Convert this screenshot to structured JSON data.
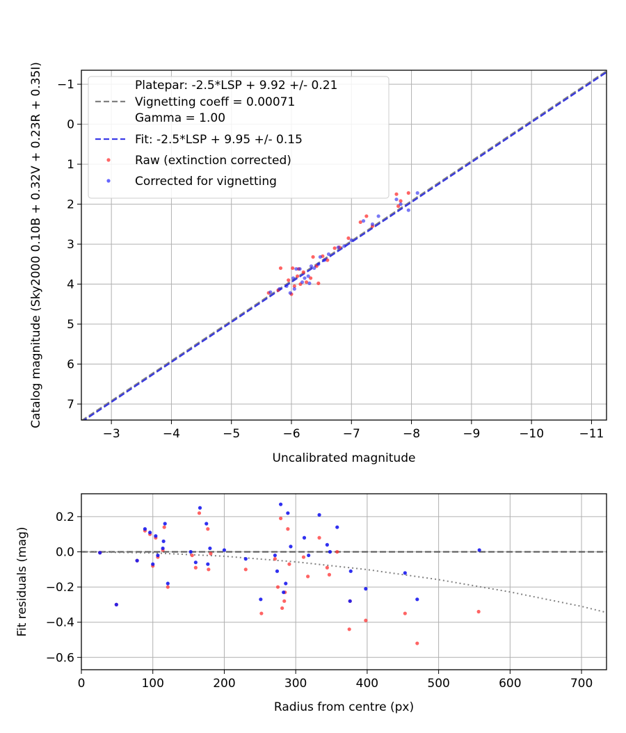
{
  "chart_data": [
    {
      "type": "scatter",
      "title": "",
      "xlabel": "Uncalibrated magnitude",
      "ylabel": "Catalog magnitude (Sky2000 0.10B + 0.32V + 0.23R + 0.35I)",
      "xlim": [
        -2.5,
        -11.25
      ],
      "ylim": [
        7.4,
        -1.35
      ],
      "x_inverted": true,
      "y_inverted": true,
      "grid": true,
      "xticks": [
        -3,
        -4,
        -5,
        -6,
        -7,
        -8,
        -9,
        -10,
        -11
      ],
      "xtick_labels": [
        "−3",
        "−4",
        "−5",
        "−6",
        "−7",
        "−8",
        "−9",
        "−10",
        "−11"
      ],
      "yticks": [
        -1,
        0,
        1,
        2,
        3,
        4,
        5,
        6,
        7
      ],
      "ytick_labels": [
        "−1",
        "0",
        "1",
        "2",
        "3",
        "4",
        "5",
        "6",
        "7"
      ],
      "legend_placement": "top-left",
      "legend": [
        {
          "kind": "line",
          "color": "#808080",
          "dash": "dashed",
          "label": "Platepar: -2.5*LSP + 9.92 +/- 0.21"
        },
        {
          "kind": "line",
          "color": "#808080",
          "dash": "dashed",
          "label": "Vignetting coeff = 0.00071"
        },
        {
          "kind": "line",
          "color": "#808080",
          "dash": "dashed",
          "label": "Gamma = 1.00"
        },
        {
          "kind": "line",
          "color": "#3a3ae8",
          "dash": "dashed",
          "label": "Fit: -2.5*LSP + 9.95 +/- 0.15"
        },
        {
          "kind": "marker",
          "color": "#ff4040",
          "label": "Raw (extinction corrected)"
        },
        {
          "kind": "marker",
          "color": "#4040ff",
          "label": "Corrected for vignetting"
        }
      ],
      "lines": [
        {
          "name": "Platepar",
          "color": "#808080",
          "x": [
            -2.5,
            -11.25
          ],
          "y": [
            7.42,
            -1.33
          ]
        },
        {
          "name": "Fit",
          "color": "#3030dd",
          "x": [
            -2.5,
            -11.25
          ],
          "y": [
            7.45,
            -1.3
          ]
        }
      ],
      "series": [
        {
          "name": "Raw (extinction corrected)",
          "color": "#ff3030",
          "points": [
            [
              -5.62,
              4.22
            ],
            [
              -5.78,
              4.15
            ],
            [
              -5.82,
              3.6
            ],
            [
              -5.95,
              3.9
            ],
            [
              -6.0,
              4.25
            ],
            [
              -6.02,
              3.6
            ],
            [
              -6.05,
              4.05
            ],
            [
              -6.1,
              3.8
            ],
            [
              -6.12,
              3.62
            ],
            [
              -6.15,
              4.0
            ],
            [
              -6.2,
              3.7
            ],
            [
              -6.25,
              3.95
            ],
            [
              -6.32,
              3.85
            ],
            [
              -6.36,
              3.32
            ],
            [
              -6.42,
              3.55
            ],
            [
              -6.45,
              3.98
            ],
            [
              -6.52,
              3.3
            ],
            [
              -6.6,
              3.4
            ],
            [
              -6.72,
              3.1
            ],
            [
              -6.8,
              3.08
            ],
            [
              -6.95,
              2.85
            ],
            [
              -7.15,
              2.45
            ],
            [
              -7.25,
              2.3
            ],
            [
              -7.35,
              2.55
            ],
            [
              -7.75,
              1.75
            ],
            [
              -7.78,
              2.05
            ],
            [
              -7.82,
              1.92
            ],
            [
              -7.95,
              1.72
            ]
          ]
        },
        {
          "name": "Corrected for vignetting",
          "color": "#2020ee",
          "points": [
            [
              -5.65,
              4.2
            ],
            [
              -5.8,
              4.12
            ],
            [
              -5.92,
              4.05
            ],
            [
              -5.98,
              4.22
            ],
            [
              -6.03,
              3.85
            ],
            [
              -6.05,
              4.12
            ],
            [
              -6.08,
              3.62
            ],
            [
              -6.14,
              3.62
            ],
            [
              -6.18,
              3.95
            ],
            [
              -6.22,
              3.85
            ],
            [
              -6.28,
              3.8
            ],
            [
              -6.3,
              3.98
            ],
            [
              -6.33,
              3.55
            ],
            [
              -6.38,
              3.6
            ],
            [
              -6.45,
              3.5
            ],
            [
              -6.48,
              3.32
            ],
            [
              -6.55,
              3.4
            ],
            [
              -6.62,
              3.25
            ],
            [
              -6.78,
              3.08
            ],
            [
              -6.88,
              3.05
            ],
            [
              -7.0,
              2.9
            ],
            [
              -7.2,
              2.42
            ],
            [
              -7.35,
              2.5
            ],
            [
              -7.45,
              2.3
            ],
            [
              -7.75,
              1.88
            ],
            [
              -7.82,
              2.0
            ],
            [
              -7.95,
              2.15
            ],
            [
              -8.1,
              1.72
            ]
          ]
        }
      ]
    },
    {
      "type": "scatter",
      "title": "",
      "xlabel": "Radius from centre (px)",
      "ylabel": "Fit residuals (mag)",
      "xlim": [
        0,
        735
      ],
      "ylim": [
        -0.67,
        0.33
      ],
      "grid": true,
      "xticks": [
        0,
        100,
        200,
        300,
        400,
        500,
        600,
        700
      ],
      "xtick_labels": [
        "0",
        "100",
        "200",
        "300",
        "400",
        "500",
        "600",
        "700"
      ],
      "yticks": [
        0.2,
        0.0,
        -0.2,
        -0.4,
        -0.6
      ],
      "ytick_labels": [
        "0.2",
        "0.0",
        "−0.2",
        "−0.4",
        "−0.6"
      ],
      "lines": [
        {
          "name": "zero",
          "color": "#555555",
          "style": "dashed",
          "x": [
            0,
            735
          ],
          "y": [
            0,
            0
          ]
        },
        {
          "name": "vignetting",
          "color": "#808080",
          "style": "dotted",
          "x": [
            0,
            100,
            200,
            300,
            400,
            500,
            600,
            700,
            735
          ],
          "y": [
            0,
            -0.006,
            -0.025,
            -0.057,
            -0.101,
            -0.158,
            -0.228,
            -0.31,
            -0.345
          ]
        }
      ],
      "series": [
        {
          "name": "Raw (extinction corrected)",
          "color": "#ff3030",
          "points": [
            [
              26,
              -0.005
            ],
            [
              49,
              -0.3
            ],
            [
              78,
              -0.05
            ],
            [
              89,
              0.12
            ],
            [
              96,
              0.1
            ],
            [
              100,
              -0.08
            ],
            [
              104,
              0.08
            ],
            [
              107,
              -0.03
            ],
            [
              114,
              0.01
            ],
            [
              116,
              0.14
            ],
            [
              121,
              -0.2
            ],
            [
              155,
              -0.02
            ],
            [
              160,
              -0.09
            ],
            [
              165,
              0.22
            ],
            [
              177,
              0.13
            ],
            [
              178,
              -0.1
            ],
            [
              181,
              -0.01
            ],
            [
              230,
              -0.1
            ],
            [
              252,
              -0.35
            ],
            [
              271,
              -0.04
            ],
            [
              275,
              -0.2
            ],
            [
              279,
              0.19
            ],
            [
              281,
              -0.32
            ],
            [
              284,
              -0.28
            ],
            [
              285,
              -0.23
            ],
            [
              289,
              0.13
            ],
            [
              291,
              -0.07
            ],
            [
              311,
              -0.03
            ],
            [
              317,
              -0.14
            ],
            [
              333,
              0.08
            ],
            [
              344,
              -0.09
            ],
            [
              347,
              -0.13
            ],
            [
              358,
              0.0
            ],
            [
              375,
              -0.44
            ],
            [
              376,
              -0.28
            ],
            [
              398,
              -0.39
            ],
            [
              453,
              -0.35
            ],
            [
              470,
              -0.52
            ],
            [
              556,
              -0.34
            ]
          ]
        },
        {
          "name": "Corrected for vignetting",
          "color": "#1a1aee",
          "points": [
            [
              26,
              -0.005
            ],
            [
              49,
              -0.3
            ],
            [
              78,
              -0.05
            ],
            [
              89,
              0.13
            ],
            [
              96,
              0.11
            ],
            [
              100,
              -0.07
            ],
            [
              104,
              0.09
            ],
            [
              107,
              -0.02
            ],
            [
              114,
              0.02
            ],
            [
              115,
              0.06
            ],
            [
              117,
              0.16
            ],
            [
              121,
              -0.18
            ],
            [
              153,
              0.0
            ],
            [
              160,
              -0.06
            ],
            [
              166,
              0.25
            ],
            [
              175,
              0.16
            ],
            [
              177,
              -0.07
            ],
            [
              180,
              0.02
            ],
            [
              200,
              0.01
            ],
            [
              230,
              -0.04
            ],
            [
              251,
              -0.27
            ],
            [
              271,
              -0.02
            ],
            [
              274,
              -0.11
            ],
            [
              279,
              0.27
            ],
            [
              283,
              -0.23
            ],
            [
              286,
              -0.18
            ],
            [
              289,
              0.22
            ],
            [
              293,
              0.03
            ],
            [
              312,
              0.08
            ],
            [
              318,
              -0.02
            ],
            [
              333,
              0.21
            ],
            [
              344,
              0.04
            ],
            [
              348,
              0.0
            ],
            [
              358,
              0.14
            ],
            [
              376,
              -0.28
            ],
            [
              377,
              -0.11
            ],
            [
              398,
              -0.21
            ],
            [
              453,
              -0.12
            ],
            [
              470,
              -0.27
            ],
            [
              557,
              0.01
            ]
          ]
        }
      ]
    }
  ]
}
